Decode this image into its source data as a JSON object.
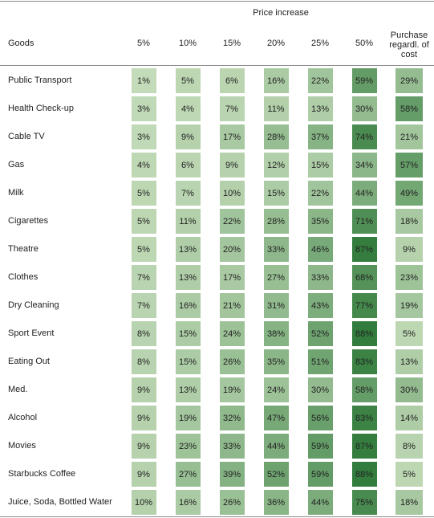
{
  "chart_data": {
    "type": "heatmap",
    "title": "",
    "super_header": "Price increase",
    "row_header": "Goods",
    "columns": [
      "5%",
      "10%",
      "15%",
      "20%",
      "25%",
      "50%",
      "Purchase regardl. of cost"
    ],
    "rows": [
      {
        "label": "Public Transport",
        "values": [
          "1%",
          "5%",
          "6%",
          "16%",
          "22%",
          "59%",
          "29%"
        ]
      },
      {
        "label": "Health Check-up",
        "values": [
          "3%",
          "4%",
          "7%",
          "11%",
          "13%",
          "30%",
          "58%"
        ]
      },
      {
        "label": "Cable TV",
        "values": [
          "3%",
          "9%",
          "17%",
          "28%",
          "37%",
          "74%",
          "21%"
        ]
      },
      {
        "label": "Gas",
        "values": [
          "4%",
          "6%",
          "9%",
          "12%",
          "15%",
          "34%",
          "57%"
        ]
      },
      {
        "label": "Milk",
        "values": [
          "5%",
          "7%",
          "10%",
          "15%",
          "22%",
          "44%",
          "49%"
        ]
      },
      {
        "label": "Cigarettes",
        "values": [
          "5%",
          "11%",
          "22%",
          "28%",
          "35%",
          "71%",
          "18%"
        ]
      },
      {
        "label": "Theatre",
        "values": [
          "5%",
          "13%",
          "20%",
          "33%",
          "46%",
          "87%",
          "9%"
        ]
      },
      {
        "label": "Clothes",
        "values": [
          "7%",
          "13%",
          "17%",
          "27%",
          "33%",
          "68%",
          "23%"
        ]
      },
      {
        "label": "Dry Cleaning",
        "values": [
          "7%",
          "16%",
          "21%",
          "31%",
          "43%",
          "77%",
          "19%"
        ]
      },
      {
        "label": "Sport Event",
        "values": [
          "8%",
          "15%",
          "24%",
          "38%",
          "52%",
          "88%",
          "5%"
        ]
      },
      {
        "label": "Eating Out",
        "values": [
          "8%",
          "15%",
          "26%",
          "35%",
          "51%",
          "83%",
          "13%"
        ]
      },
      {
        "label": "Med.",
        "values": [
          "9%",
          "13%",
          "19%",
          "24%",
          "30%",
          "58%",
          "30%"
        ]
      },
      {
        "label": "Alcohol",
        "values": [
          "9%",
          "19%",
          "32%",
          "47%",
          "56%",
          "83%",
          "14%"
        ]
      },
      {
        "label": "Movies",
        "values": [
          "9%",
          "23%",
          "33%",
          "44%",
          "59%",
          "87%",
          "8%"
        ]
      },
      {
        "label": "Starbucks Coffee",
        "values": [
          "9%",
          "27%",
          "39%",
          "52%",
          "59%",
          "88%",
          "5%"
        ]
      },
      {
        "label": "Juice, Soda, Bottled Water",
        "values": [
          "10%",
          "16%",
          "26%",
          "36%",
          "44%",
          "75%",
          "18%"
        ]
      }
    ],
    "color_low": "#c5dcba",
    "color_high": "#2f7a3a"
  }
}
